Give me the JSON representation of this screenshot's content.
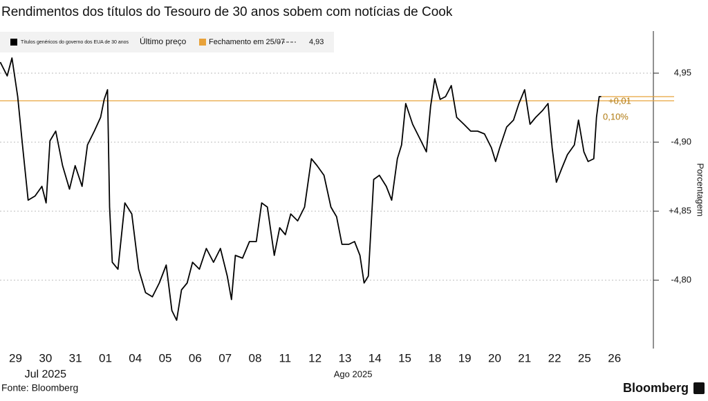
{
  "chart_data": {
    "type": "line",
    "title": "Rendimentos dos títulos do Tesouro de 30 anos sobem com notícias de Cook",
    "y_label": "Porcentagem",
    "source": "Fonte: Bloomberg",
    "brand": "Bloomberg",
    "last_price_label": "Último preço",
    "series": [
      {
        "name": "Títulos genéricos do governo dos EUA de 30 anos",
        "color": "#000000",
        "x": [
          -0.51,
          -0.28,
          -0.12,
          0.07,
          0.23,
          0.42,
          0.65,
          0.88,
          1.02,
          1.15,
          1.34,
          1.57,
          1.8,
          1.99,
          2.22,
          2.4,
          2.63,
          2.84,
          2.96,
          3.07,
          3.14,
          3.23,
          3.42,
          3.65,
          3.88,
          4.11,
          4.34,
          4.57,
          4.8,
          5.03,
          5.22,
          5.38,
          5.54,
          5.73,
          5.91,
          6.14,
          6.37,
          6.61,
          6.84,
          7.07,
          7.21,
          7.34,
          7.58,
          7.81,
          8.04,
          8.22,
          8.41,
          8.64,
          8.82,
          9.01,
          9.19,
          9.42,
          9.65,
          9.88,
          10.07,
          10.3,
          10.53,
          10.72,
          10.9,
          11.13,
          11.32,
          11.5,
          11.64,
          11.78,
          11.96,
          12.15,
          12.38,
          12.56,
          12.75,
          12.89,
          13.03,
          13.26,
          13.49,
          13.72,
          13.86,
          14.0,
          14.18,
          14.36,
          14.55,
          14.73,
          14.97,
          15.2,
          15.43,
          15.66,
          15.89,
          16.03,
          16.17,
          16.4,
          16.63,
          16.81,
          17.0,
          17.18,
          17.37,
          17.6,
          17.78,
          17.92,
          18.06,
          18.24,
          18.43,
          18.66,
          18.8,
          18.98,
          19.12,
          19.31,
          19.4,
          19.49,
          19.56
        ],
        "values": [
          4.958,
          4.948,
          4.961,
          4.933,
          4.898,
          4.858,
          4.861,
          4.868,
          4.856,
          4.901,
          4.908,
          4.883,
          4.866,
          4.883,
          4.868,
          4.898,
          4.908,
          4.918,
          4.931,
          4.938,
          4.853,
          4.813,
          4.808,
          4.856,
          4.848,
          4.808,
          4.791,
          4.788,
          4.798,
          4.811,
          4.778,
          4.771,
          4.793,
          4.798,
          4.813,
          4.808,
          4.823,
          4.813,
          4.823,
          4.803,
          4.786,
          4.818,
          4.816,
          4.828,
          4.828,
          4.856,
          4.853,
          4.818,
          4.838,
          4.833,
          4.848,
          4.843,
          4.853,
          4.888,
          4.883,
          4.876,
          4.853,
          4.846,
          4.826,
          4.826,
          4.828,
          4.818,
          4.798,
          4.803,
          4.873,
          4.876,
          4.868,
          4.858,
          4.888,
          4.898,
          4.928,
          4.913,
          4.903,
          4.893,
          4.926,
          4.946,
          4.931,
          4.933,
          4.941,
          4.918,
          4.913,
          4.908,
          4.908,
          4.906,
          4.896,
          4.886,
          4.896,
          4.911,
          4.916,
          4.928,
          4.938,
          4.913,
          4.918,
          4.923,
          4.928,
          4.896,
          4.871,
          4.881,
          4.891,
          4.898,
          4.916,
          4.893,
          4.886,
          4.888,
          4.918,
          4.933,
          4.933
        ]
      }
    ],
    "reference": {
      "name": "Fechamento em 25/07",
      "color": "#e8a23a",
      "value": 4.93,
      "label": "4,93"
    },
    "annotations": [
      "+0,01",
      "0,10%"
    ],
    "xlim": [
      -0.52,
      21.3
    ],
    "xticks": [
      {
        "value": 0,
        "label": "29"
      },
      {
        "value": 1,
        "label": "30"
      },
      {
        "value": 2,
        "label": "31"
      },
      {
        "value": 3,
        "label": "01"
      },
      {
        "value": 4,
        "label": "04"
      },
      {
        "value": 5,
        "label": "05"
      },
      {
        "value": 6,
        "label": "06"
      },
      {
        "value": 7,
        "label": "07"
      },
      {
        "value": 8,
        "label": "08"
      },
      {
        "value": 9,
        "label": "11"
      },
      {
        "value": 10,
        "label": "12"
      },
      {
        "value": 11,
        "label": "13"
      },
      {
        "value": 12,
        "label": "14"
      },
      {
        "value": 13,
        "label": "15"
      },
      {
        "value": 14,
        "label": "18"
      },
      {
        "value": 15,
        "label": "19"
      },
      {
        "value": 16,
        "label": "20"
      },
      {
        "value": 17,
        "label": "21"
      },
      {
        "value": 18,
        "label": "22"
      },
      {
        "value": 19,
        "label": "25"
      },
      {
        "value": 20,
        "label": "26"
      }
    ],
    "month_labels": [
      {
        "value": 1,
        "label": "Jul 2025"
      },
      {
        "value": 11.27,
        "label": "Ago 2025"
      }
    ],
    "ylim": [
      4.75,
      4.98
    ],
    "yticks": [
      {
        "value": 4.8,
        "label": "-4,80"
      },
      {
        "value": 4.85,
        "label": "+4,85"
      },
      {
        "value": 4.9,
        "label": "-4,90"
      },
      {
        "value": 4.95,
        "label": "4,95"
      }
    ],
    "grid": true
  }
}
